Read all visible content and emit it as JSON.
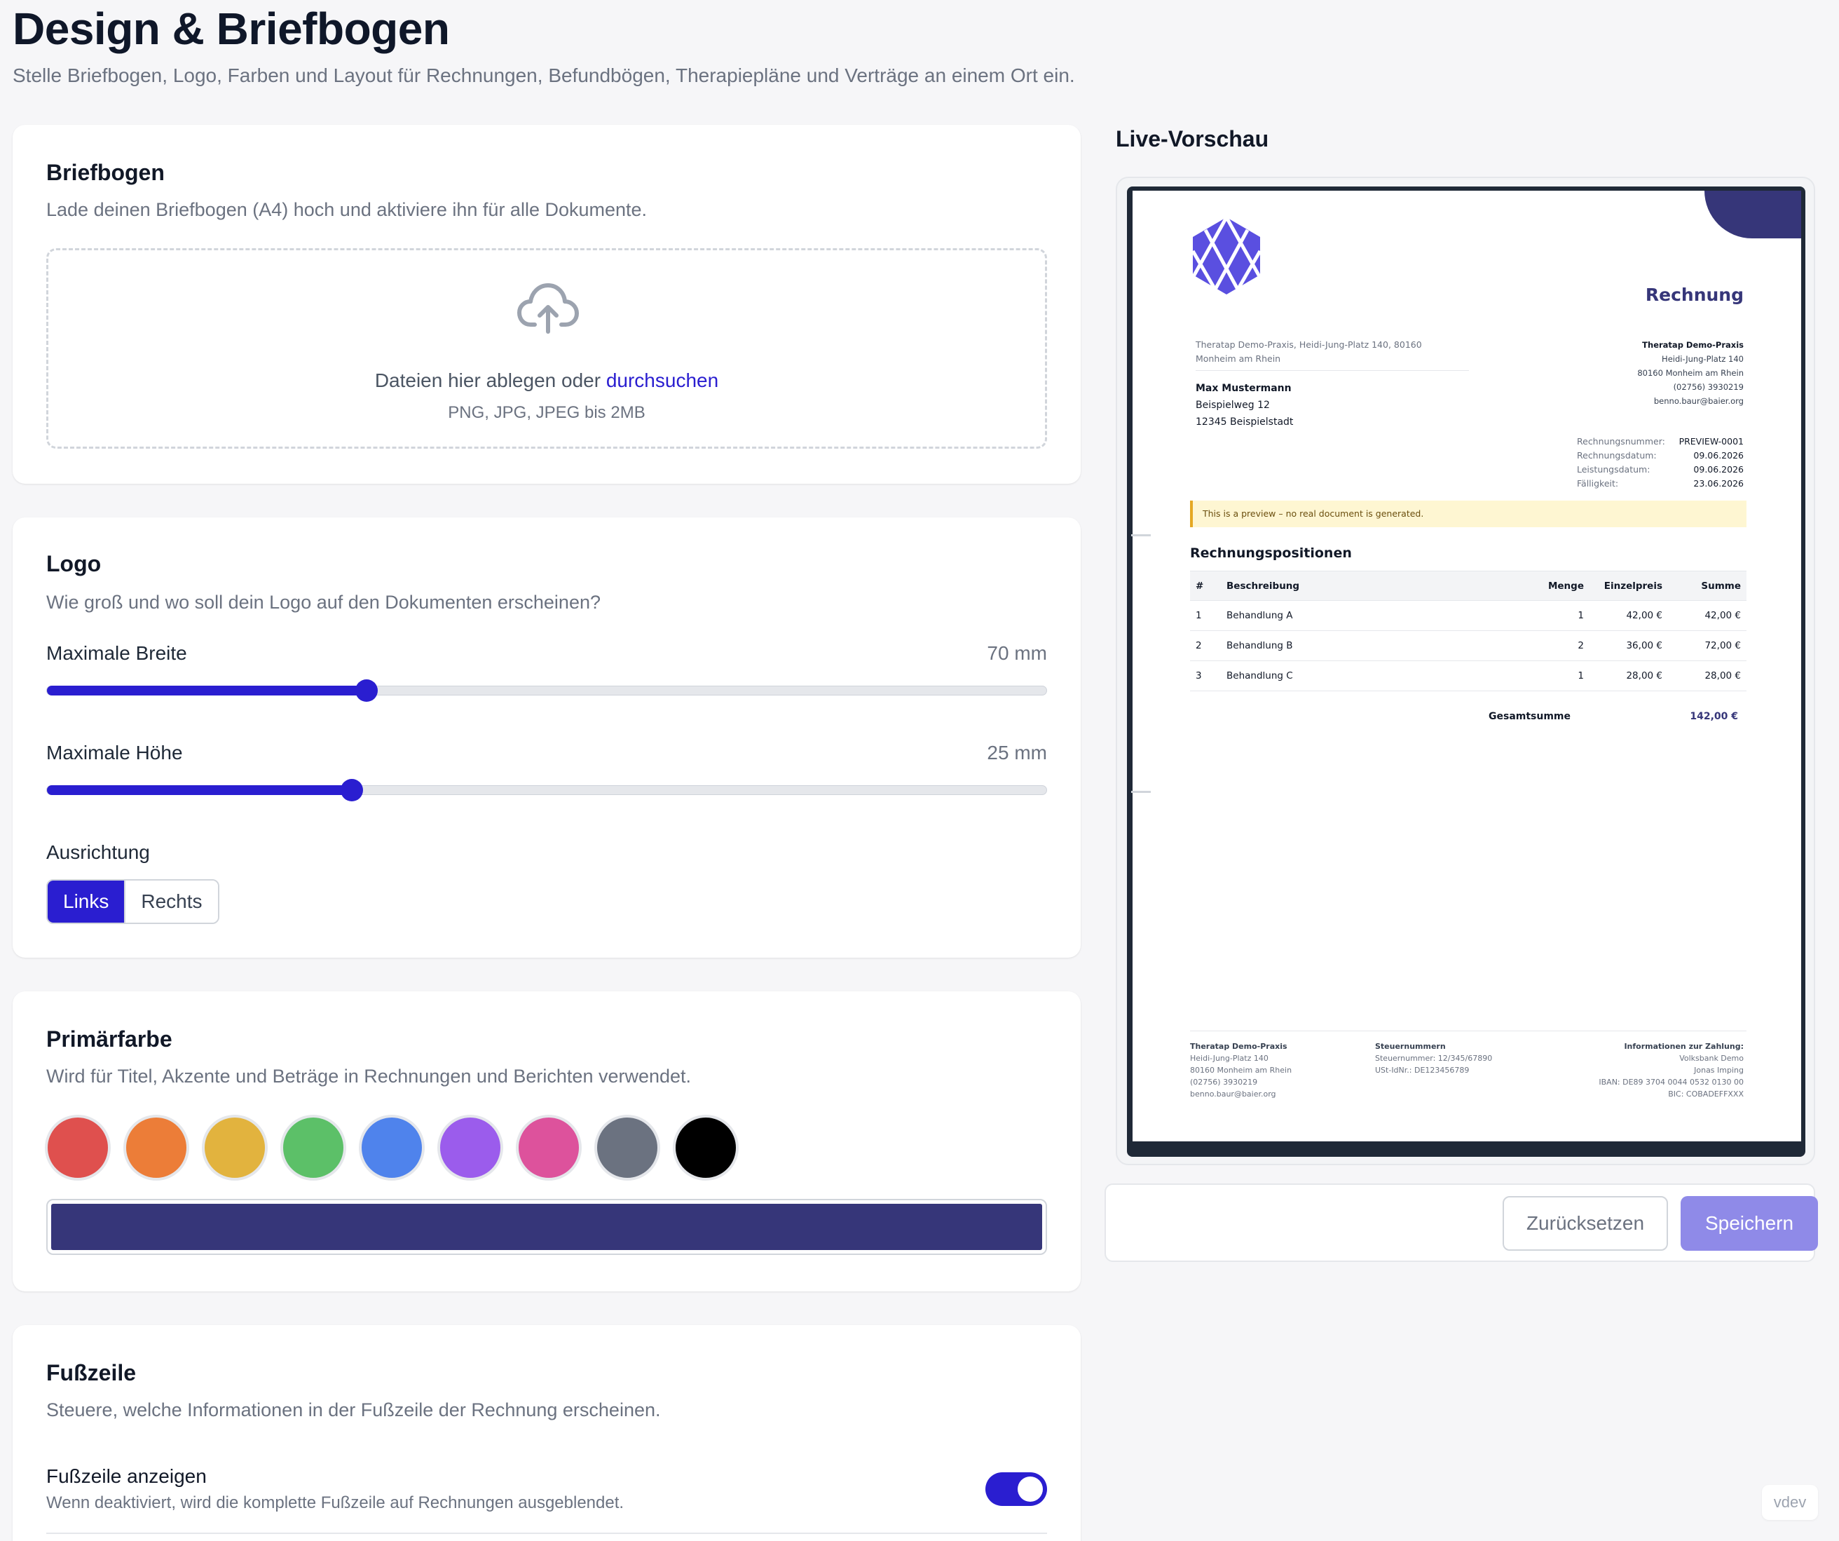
{
  "page": {
    "title": "Design & Briefbogen",
    "subtitle": "Stelle Briefbogen, Logo, Farben und Layout für Rechnungen, Befundbögen, Therapiepläne und Verträge an einem Ort ein."
  },
  "briefbogen": {
    "title": "Briefbogen",
    "description": "Lade deinen Briefbogen (A4) hoch und aktiviere ihn für alle Dokumente.",
    "drop_text": "Dateien hier ablegen oder ",
    "browse_link": "durchsuchen",
    "hint": "PNG, JPG, JPEG bis 2MB",
    "icon": "cloud-upload-icon"
  },
  "logo": {
    "title": "Logo",
    "description": "Wie groß und wo soll dein Logo auf den Dokumenten erscheinen?",
    "width": {
      "label": "Maximale Breite",
      "value_text": "70 mm",
      "fraction": 0.32
    },
    "height": {
      "label": "Maximale Höhe",
      "value_text": "25 mm",
      "fraction": 0.305
    },
    "alignment": {
      "label": "Ausrichtung",
      "options": [
        "Links",
        "Rechts"
      ],
      "selected": "Links"
    }
  },
  "farbe": {
    "title": "Primärfarbe",
    "description": "Wird für Titel, Akzente und Beträge in Rechnungen und Berichten verwendet.",
    "swatches": [
      "#df504e",
      "#ec7d38",
      "#e2b33e",
      "#5cc068",
      "#4f83ec",
      "#9b5cec",
      "#dd529c",
      "#6b7280",
      "#000000"
    ],
    "selected_color": "#363679"
  },
  "fusszeile": {
    "title": "Fußzeile",
    "description": "Steuere, welche Informationen in der Fußzeile der Rechnung erscheinen.",
    "toggle_label": "Fußzeile anzeigen",
    "toggle_desc": "Wenn deaktiviert, wird die komplette Fußzeile auf Rechnungen ausgeblendet.",
    "enabled": true
  },
  "preview": {
    "title": "Live-Vorschau",
    "doc": {
      "type": "Rechnung",
      "sender_line_1": "Theratap Demo-Praxis, Heidi-Jung-Platz 140, 80160",
      "sender_line_2": "Monheim am Rhein",
      "recipient": {
        "name": "Max Mustermann",
        "street": "Beispielweg 12",
        "city": "12345 Beispielstadt"
      },
      "company": {
        "name": "Theratap Demo-Praxis",
        "street": "Heidi-Jung-Platz 140",
        "city": "80160 Monheim am Rhein",
        "phone": "(02756) 3930219",
        "email": "benno.baur@baier.org"
      },
      "meta": [
        {
          "k": "Rechnungsnummer:",
          "v": "PREVIEW-0001"
        },
        {
          "k": "Rechnungsdatum:",
          "v": "09.06.2026"
        },
        {
          "k": "Leistungsdatum:",
          "v": "09.06.2026"
        },
        {
          "k": "Fälligkeit:",
          "v": "23.06.2026"
        }
      ],
      "notice": "This is a preview – no real document is generated.",
      "positions_title": "Rechnungspositionen",
      "table_headers": [
        "#",
        "Beschreibung",
        "Menge",
        "Einzelpreis",
        "Summe"
      ],
      "rows": [
        [
          "1",
          "Behandlung A",
          "1",
          "42,00 €",
          "42,00 €"
        ],
        [
          "2",
          "Behandlung B",
          "2",
          "36,00 €",
          "72,00 €"
        ],
        [
          "3",
          "Behandlung C",
          "1",
          "28,00 €",
          "28,00 €"
        ]
      ],
      "total_label": "Gesamtsumme",
      "total_value": "142,00 €",
      "footer": {
        "col1": {
          "h": "Theratap Demo-Praxis",
          "l1": "Heidi-Jung-Platz 140",
          "l2": "80160 Monheim am Rhein",
          "l3": "(02756) 3930219",
          "l4": "benno.baur@baier.org"
        },
        "col2": {
          "h": "Steuernummern",
          "l1": "Steuernummer: 12/345/67890",
          "l2": "USt-IdNr.: DE123456789"
        },
        "col3": {
          "h": "Informationen zur Zahlung:",
          "l1": "Volksbank Demo",
          "l2": "Jonas Imping",
          "l3": "IBAN: DE89 3704 0044 0532 0130 00",
          "l4": "BIC: COBADEFFXXX"
        }
      }
    }
  },
  "actions": {
    "reset": "Zurücksetzen",
    "save": "Speichern"
  },
  "env_badge": "vdev"
}
